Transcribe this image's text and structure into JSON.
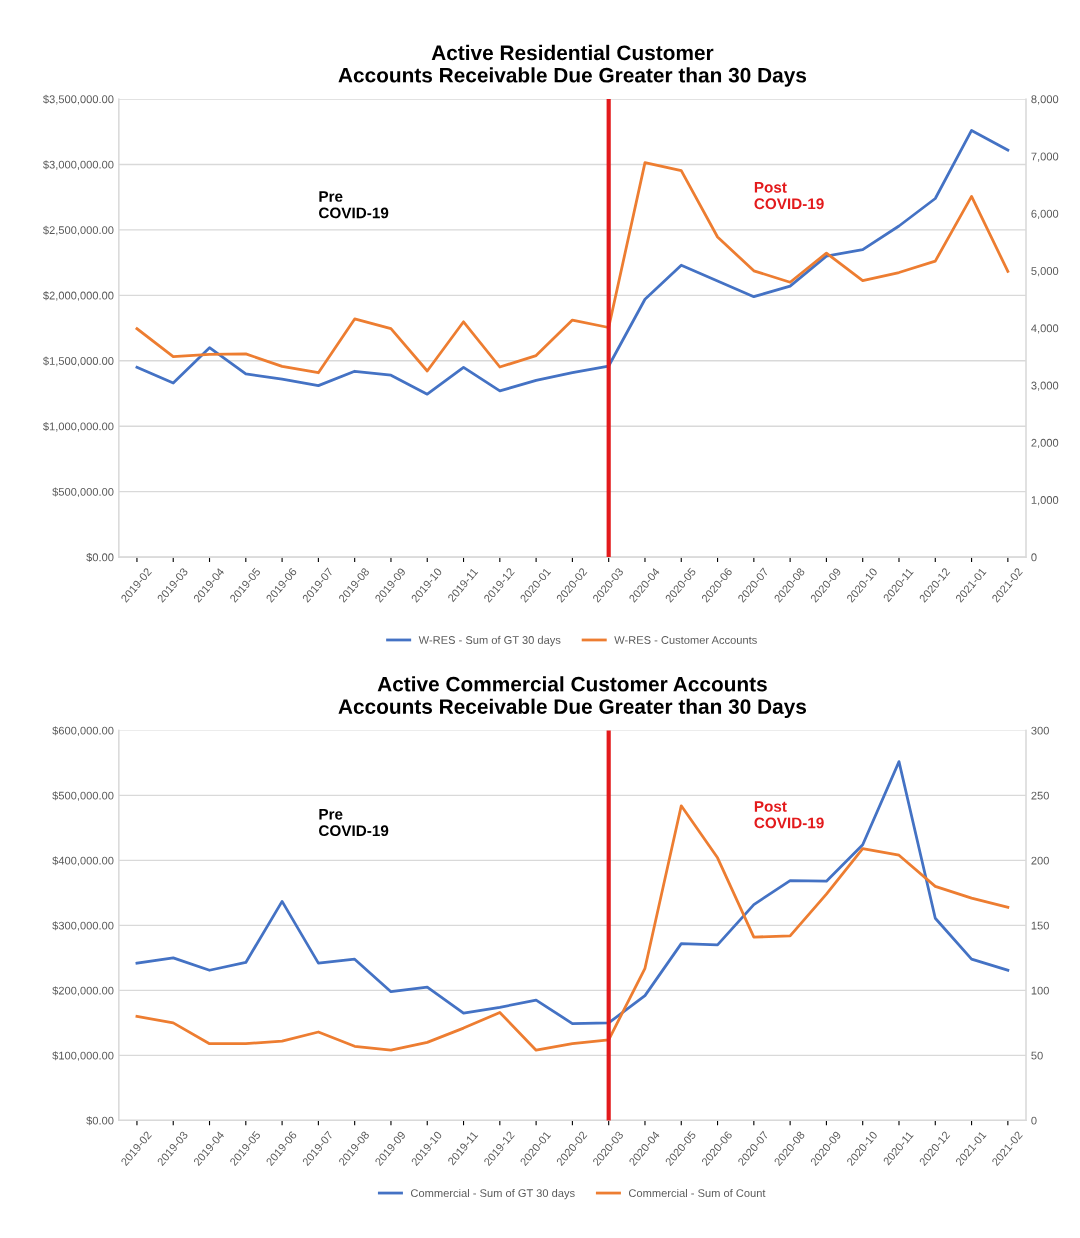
{
  "chart_data": [
    {
      "type": "line",
      "title": "Active Residential Customer\nAccounts Receivable Due Greater than 30 Days",
      "categories": [
        "2019-02",
        "2019-03",
        "2019-04",
        "2019-05",
        "2019-06",
        "2019-07",
        "2019-08",
        "2019-09",
        "2019-10",
        "2019-11",
        "2019-12",
        "2020-01",
        "2020-02",
        "2020-03",
        "2020-04",
        "2020-05",
        "2020-06",
        "2020-07",
        "2020-08",
        "2020-09",
        "2020-10",
        "2020-11",
        "2020-12",
        "2021-01",
        "2021-02"
      ],
      "series": [
        {
          "name": "W-RES - Sum of GT 30 days",
          "color": "#4472c4",
          "values": [
            1450000,
            1330000,
            1600000,
            1400000,
            1360000,
            1310000,
            1420000,
            1390000,
            1245000,
            1450000,
            1270000,
            1350000,
            1410000,
            1460000,
            1970000,
            2230000,
            2110000,
            1990000,
            2070000,
            2300000,
            2350000,
            2530000,
            2740000,
            3260000,
            3110000
          ]
        },
        {
          "name": "W-RES - Customer Accounts",
          "color": "#ed7d31",
          "axis": "y2",
          "values": [
            3990,
            3500,
            3540,
            3550,
            3330,
            3220,
            4160,
            3990,
            3250,
            4110,
            3320,
            3520,
            4140,
            4010,
            6890,
            6750,
            5590,
            5000,
            4800,
            5310,
            4830,
            4970,
            5170,
            6300,
            4990
          ]
        }
      ],
      "ylim": [
        0,
        3500000
      ],
      "yticks": [
        {
          "value": 0,
          "label": "$0.00"
        },
        {
          "value": 500000,
          "label": "$500,000.00"
        },
        {
          "value": 1000000,
          "label": "$1,000,000.00"
        },
        {
          "value": 1500000,
          "label": "$1,500,000.00"
        },
        {
          "value": 2000000,
          "label": "$2,000,000.00"
        },
        {
          "value": 2500000,
          "label": "$2,500,000.00"
        },
        {
          "value": 3000000,
          "label": "$3,000,000.00"
        },
        {
          "value": 3500000,
          "label": "$3,500,000.00"
        }
      ],
      "y2lim": [
        0,
        8000
      ],
      "y2ticks": [
        0,
        {
          "value": 1000,
          "label": "1,000"
        },
        {
          "value": 2000,
          "label": "2,000"
        },
        {
          "value": 3000,
          "label": "3,000"
        },
        {
          "value": 4000,
          "label": "4,000"
        },
        {
          "value": 5000,
          "label": "5,000"
        },
        {
          "value": 6000,
          "label": "6,000"
        },
        {
          "value": 7000,
          "label": "7,000"
        },
        {
          "value": 8000,
          "label": "8,000"
        }
      ],
      "ref_lines": [
        {
          "axis": "x",
          "value": "2020-03",
          "color": "#e31a1c"
        }
      ],
      "annotations": [
        "Pre\nCOVID-19",
        "Post\nCOVID-19"
      ],
      "grid": "y",
      "legend": "bottom",
      "marker": "none",
      "line_style": "solid"
    },
    {
      "type": "line",
      "title": "Active Commercial Customer Accounts\nAccounts Receivable Due Greater than 30 Days",
      "categories": [
        "2019-02",
        "2019-03",
        "2019-04",
        "2019-05",
        "2019-06",
        "2019-07",
        "2019-08",
        "2019-09",
        "2019-10",
        "2019-11",
        "2019-12",
        "2020-01",
        "2020-02",
        "2020-03",
        "2020-04",
        "2020-05",
        "2020-06",
        "2020-07",
        "2020-08",
        "2020-09",
        "2020-10",
        "2020-11",
        "2020-12",
        "2021-01",
        "2021-02"
      ],
      "series": [
        {
          "name": "Commercial - Sum of GT 30 days",
          "color": "#4472c4",
          "values": [
            242000,
            250000,
            231000,
            243000,
            337000,
            242000,
            248000,
            198000,
            205000,
            165000,
            174000,
            185000,
            149000,
            150000,
            192000,
            272000,
            270000,
            332000,
            369000,
            368000,
            424000,
            552000,
            311000,
            248000,
            231000
          ]
        },
        {
          "name": "Commercial - Sum of Count",
          "color": "#ed7d31",
          "axis": "y2",
          "values": [
            80,
            75,
            59,
            59,
            61,
            68,
            57,
            54,
            60,
            71,
            83,
            54,
            59,
            62,
            117,
            242,
            202,
            141,
            142,
            174,
            209,
            204,
            180,
            171,
            164
          ]
        }
      ],
      "ylim": [
        0,
        600000
      ],
      "yticks": [
        {
          "value": 0,
          "label": "$0.00"
        },
        {
          "value": 100000,
          "label": "$100,000.00"
        },
        {
          "value": 200000,
          "label": "$200,000.00"
        },
        {
          "value": 300000,
          "label": "$300,000.00"
        },
        {
          "value": 400000,
          "label": "$400,000.00"
        },
        {
          "value": 500000,
          "label": "$500,000.00"
        },
        {
          "value": 600000,
          "label": "$600,000.00"
        }
      ],
      "y2lim": [
        0,
        300
      ],
      "y2ticks": [
        0,
        50,
        100,
        150,
        200,
        250,
        300
      ],
      "ref_lines": [
        {
          "axis": "x",
          "value": "2020-03",
          "color": "#e31a1c"
        }
      ],
      "annotations": [
        "Pre\nCOVID-19",
        "Post\nCOVID-19"
      ],
      "grid": "y",
      "legend": "bottom",
      "marker": "none",
      "line_style": "solid"
    }
  ]
}
